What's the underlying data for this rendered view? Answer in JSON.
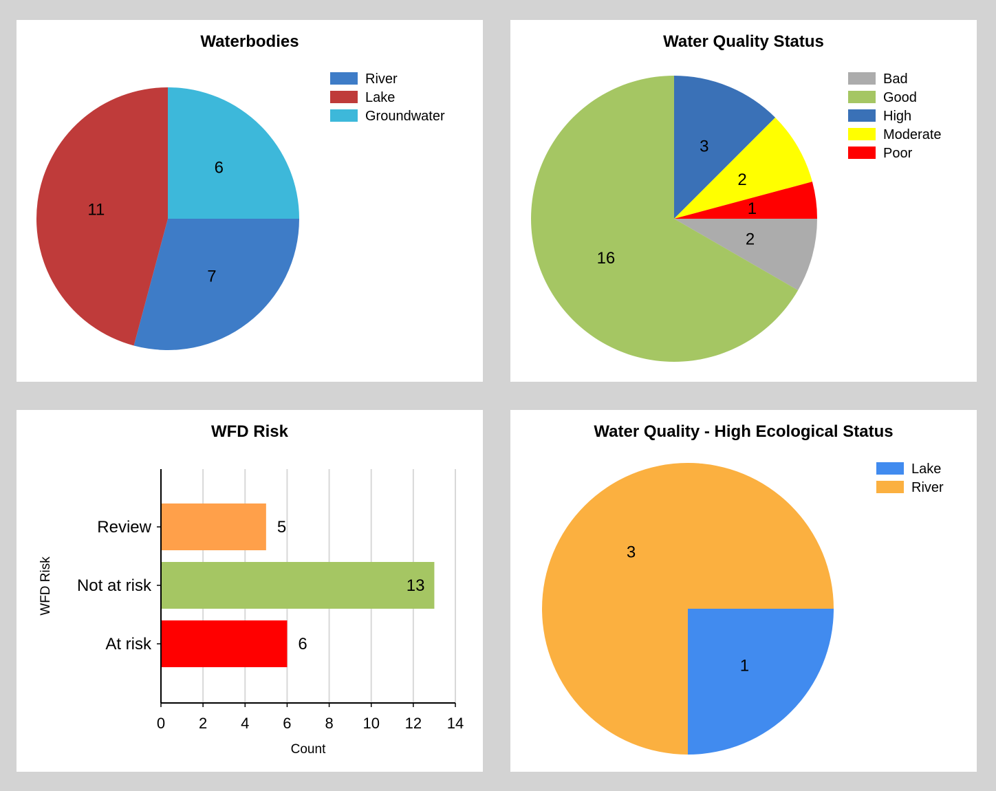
{
  "chart_data": [
    {
      "type": "pie",
      "title": "Waterbodies",
      "legend": "top-right",
      "slices": [
        {
          "label": "River",
          "value": 7,
          "color": "#3e7cc7"
        },
        {
          "label": "Lake",
          "value": 11,
          "color": "#bf3b3a"
        },
        {
          "label": "Groundwater",
          "value": 6,
          "color": "#3db8da"
        }
      ]
    },
    {
      "type": "pie",
      "title": "Water Quality Status",
      "legend": "top-right",
      "slices": [
        {
          "label": "Bad",
          "value": 2,
          "color": "#acacac"
        },
        {
          "label": "Good",
          "value": 16,
          "color": "#a5c663"
        },
        {
          "label": "High",
          "value": 3,
          "color": "#3a71b7"
        },
        {
          "label": "Moderate",
          "value": 2,
          "color": "#ffff00"
        },
        {
          "label": "Poor",
          "value": 1,
          "color": "#ff0000"
        }
      ]
    },
    {
      "type": "bar",
      "orientation": "horizontal",
      "title": "WFD Risk",
      "xlabel": "Count",
      "ylabel": "WFD Risk",
      "categories": [
        "Review",
        "Not at risk",
        "At risk"
      ],
      "values": [
        5,
        13,
        6
      ],
      "colors": [
        "#ffa04a",
        "#a5c663",
        "#ff0000"
      ],
      "xlim": [
        0,
        14
      ],
      "xticks": [
        0,
        2,
        4,
        6,
        8,
        10,
        12,
        14
      ],
      "grid": true
    },
    {
      "type": "pie",
      "title": "Water Quality - High Ecological Status",
      "legend": "top-right",
      "slices": [
        {
          "label": "Lake",
          "value": 1,
          "color": "#418bef"
        },
        {
          "label": "River",
          "value": 3,
          "color": "#fbb040"
        }
      ]
    }
  ]
}
